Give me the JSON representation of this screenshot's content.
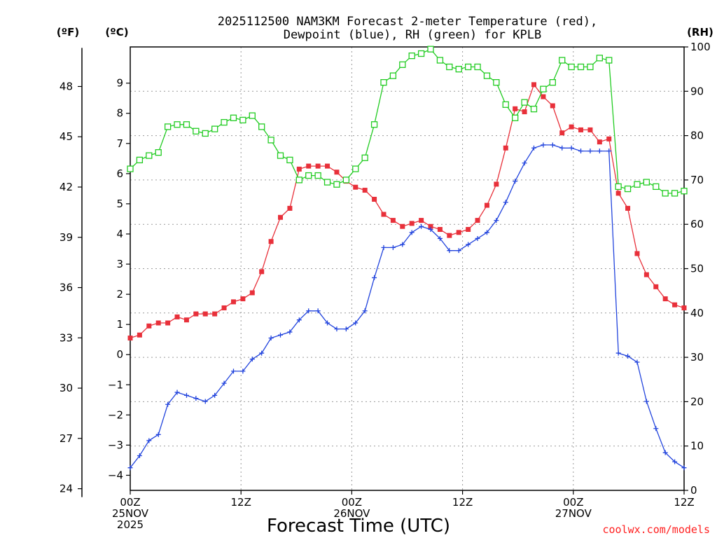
{
  "chart_data": {
    "type": "line",
    "title": [
      "2025112500 NAM3KM Forecast 2-meter Temperature (red),",
      "Dewpoint (blue), RH (green) for KPLB"
    ],
    "xlabel": "Forecast Time (UTC)",
    "credit": "coolwx.com/models",
    "units": {
      "fahrenheit": "(ºF)",
      "celsius": "(ºC)",
      "rh": "(RH)"
    },
    "x_range_hours": [
      0,
      60
    ],
    "x_ticks": [
      {
        "hour": 0,
        "lines": [
          "00Z",
          "25NOV",
          "2025"
        ]
      },
      {
        "hour": 12,
        "lines": [
          "12Z"
        ]
      },
      {
        "hour": 24,
        "lines": [
          "00Z",
          "26NOV"
        ]
      },
      {
        "hour": 36,
        "lines": [
          "12Z"
        ]
      },
      {
        "hour": 48,
        "lines": [
          "00Z",
          "27NOV"
        ]
      },
      {
        "hour": 60,
        "lines": [
          "12Z"
        ]
      }
    ],
    "y_celsius_range": [
      -4.5,
      10.2
    ],
    "y_celsius_ticks": [
      "-4",
      "-3",
      "-2",
      "-1",
      "0",
      "1",
      "2",
      "3",
      "4",
      "5",
      "6",
      "7",
      "8",
      "9"
    ],
    "y_fahrenheit_ticks": [
      "24",
      "27",
      "30",
      "33",
      "36",
      "39",
      "42",
      "45",
      "48"
    ],
    "y_rh_range": [
      0,
      100
    ],
    "y_rh_ticks": [
      "0",
      "10",
      "20",
      "30",
      "40",
      "50",
      "60",
      "70",
      "80",
      "90",
      "100"
    ],
    "series": [
      {
        "name": "2-meter Temperature",
        "axis": "celsius",
        "color": "#e8303a",
        "marker": "filled-square",
        "values": [
          0.55,
          0.65,
          0.95,
          1.05,
          1.05,
          1.25,
          1.15,
          1.35,
          1.35,
          1.35,
          1.55,
          1.75,
          1.85,
          2.05,
          2.75,
          3.75,
          4.55,
          4.85,
          6.15,
          6.25,
          6.25,
          6.25,
          6.05,
          5.75,
          5.55,
          5.45,
          5.15,
          4.65,
          4.45,
          4.25,
          4.35,
          4.45,
          4.25,
          4.15,
          3.95,
          4.05,
          4.15,
          4.45,
          4.95,
          5.65,
          6.85,
          8.15,
          8.05,
          8.95,
          8.55,
          8.25,
          7.35,
          7.55,
          7.45,
          7.45,
          7.05,
          7.15,
          5.35,
          4.85,
          3.35,
          2.65,
          2.25,
          1.85,
          1.65,
          1.55
        ]
      },
      {
        "name": "Dewpoint",
        "axis": "celsius",
        "color": "#2244dd",
        "marker": "plus",
        "values": [
          -3.75,
          -3.35,
          -2.85,
          -2.65,
          -1.65,
          -1.25,
          -1.35,
          -1.45,
          -1.55,
          -1.35,
          -0.95,
          -0.55,
          -0.55,
          -0.15,
          0.05,
          0.55,
          0.65,
          0.75,
          1.15,
          1.45,
          1.45,
          1.05,
          0.85,
          0.85,
          1.05,
          1.45,
          2.55,
          3.55,
          3.55,
          3.65,
          4.05,
          4.25,
          4.15,
          3.85,
          3.45,
          3.45,
          3.65,
          3.85,
          4.05,
          4.45,
          5.05,
          5.75,
          6.35,
          6.85,
          6.95,
          6.95,
          6.85,
          6.85,
          6.75,
          6.75,
          6.75,
          6.75,
          0.05,
          -0.05,
          -0.25,
          -1.55,
          -2.45,
          -3.25,
          -3.55,
          -3.75
        ]
      },
      {
        "name": "Relative Humidity",
        "axis": "rh",
        "color": "#22cc22",
        "marker": "open-square",
        "values": [
          72.5,
          74.5,
          75.5,
          76.2,
          82.0,
          82.5,
          82.5,
          81.0,
          80.5,
          81.5,
          83.0,
          84.0,
          83.5,
          84.5,
          82.0,
          79.0,
          75.5,
          74.5,
          70.0,
          71.0,
          71.0,
          69.5,
          69.0,
          70.0,
          72.5,
          75.0,
          82.5,
          92.0,
          93.5,
          96.0,
          98.0,
          98.5,
          99.5,
          97.0,
          95.5,
          95.0,
          95.5,
          95.5,
          93.5,
          92.0,
          87.0,
          84.0,
          87.5,
          86.0,
          90.5,
          92.0,
          97.0,
          95.5,
          95.5,
          95.5,
          97.5,
          97.0,
          68.5,
          68.0,
          69.0,
          69.5,
          68.5,
          67.0,
          67.0,
          67.5
        ]
      }
    ]
  }
}
